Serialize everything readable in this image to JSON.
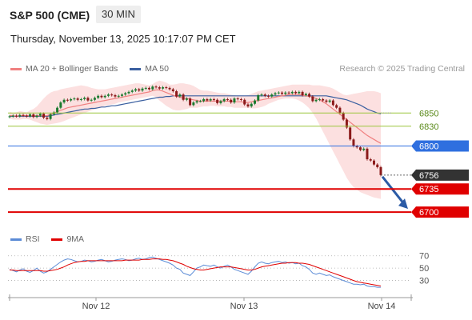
{
  "header": {
    "title": "S&P 500 (CME)",
    "timeframe": "30 MIN",
    "date": "Thursday, November 13, 2025 10:17:07 PM CET"
  },
  "legend": {
    "items": [
      {
        "label": "MA 20 + Bollinger Bands",
        "color": "#f08080"
      },
      {
        "label": "MA 50",
        "color": "#3a5fa0"
      }
    ],
    "research": "Research © 2025 Trading Central"
  },
  "rsi_legend": {
    "items": [
      {
        "label": "RSI",
        "color": "#5b8bd6"
      },
      {
        "label": "9MA",
        "color": "#e00000"
      }
    ]
  },
  "colors": {
    "up": "#1a7a2e",
    "down": "#8b1a1a",
    "bollinger": "#fbd5d5",
    "ma20": "#f08080",
    "ma50": "#3a5fa0",
    "green_level": "#9bc53d",
    "blue_level": "#2f6fdf",
    "red_level": "#e00000",
    "last_price": "#333333",
    "arrow": "#2b5ba6"
  },
  "chart_data": [
    {
      "type": "candlestick",
      "title": "S&P 500 (CME)",
      "x_ticks": [
        "Nov 12",
        "Nov 13",
        "Nov 14"
      ],
      "ylim": [
        6688,
        6900
      ],
      "levels": [
        {
          "value": 6850,
          "label": "6850",
          "style": "green-line"
        },
        {
          "value": 6830,
          "label": "6830",
          "style": "green-line"
        },
        {
          "value": 6800,
          "label": "6800",
          "style": "blue-tag"
        },
        {
          "value": 6756,
          "label": "6756",
          "style": "last-price-tag"
        },
        {
          "value": 6735,
          "label": "6735",
          "style": "red-tag"
        },
        {
          "value": 6700,
          "label": "6700",
          "style": "red-tag"
        }
      ],
      "close": [
        6845,
        6846,
        6845,
        6847,
        6846,
        6845,
        6848,
        6844,
        6846,
        6849,
        6843,
        6841,
        6848,
        6851,
        6858,
        6866,
        6870,
        6869,
        6871,
        6872,
        6870,
        6871,
        6873,
        6869,
        6870,
        6873,
        6876,
        6874,
        6876,
        6878,
        6877,
        6875,
        6876,
        6878,
        6880,
        6882,
        6884,
        6886,
        6884,
        6887,
        6888,
        6886,
        6890,
        6889,
        6887,
        6889,
        6888,
        6886,
        6883,
        6875,
        6878,
        6870,
        6872,
        6862,
        6866,
        6868,
        6868,
        6871,
        6869,
        6871,
        6870,
        6865,
        6868,
        6871,
        6870,
        6866,
        6872,
        6871,
        6870,
        6863,
        6860,
        6864,
        6869,
        6877,
        6878,
        6876,
        6875,
        6878,
        6880,
        6881,
        6879,
        6881,
        6880,
        6882,
        6880,
        6882,
        6877,
        6879,
        6875,
        6868,
        6870,
        6871,
        6869,
        6867,
        6869,
        6862,
        6858,
        6850,
        6840,
        6828,
        6810,
        6800,
        6798,
        6794,
        6796,
        6780,
        6778,
        6772,
        6768,
        6756
      ],
      "bollinger_upper": [
        6852,
        6850,
        6851,
        6853,
        6852,
        6851,
        6854,
        6856,
        6860,
        6866,
        6872,
        6877,
        6881,
        6883,
        6884,
        6886,
        6887,
        6888,
        6889,
        6890,
        6891,
        6892,
        6891,
        6890,
        6888,
        6887,
        6886,
        6886,
        6886,
        6887,
        6888,
        6889,
        6890,
        6891,
        6892,
        6893,
        6894,
        6895,
        6895,
        6894,
        6893,
        6892,
        6894,
        6897,
        6899,
        6898,
        6896,
        6893,
        6893,
        6894,
        6895,
        6895,
        6894,
        6893,
        6891,
        6888,
        6885,
        6884,
        6884,
        6883,
        6882,
        6881,
        6880,
        6880,
        6879,
        6878,
        6877,
        6876,
        6876,
        6876,
        6877,
        6879,
        6881,
        6883,
        6884,
        6885,
        6886,
        6887,
        6888,
        6889,
        6890,
        6891,
        6892,
        6893,
        6893,
        6893,
        6893,
        6893,
        6893,
        6892,
        6892,
        6892,
        6891,
        6890,
        6889,
        6887,
        6884,
        6881,
        6878,
        6877,
        6878,
        6879,
        6880,
        6881,
        6882,
        6883,
        6883,
        6883,
        6882,
        6880
      ],
      "bollinger_lower": [
        6842,
        6840,
        6840,
        6840,
        6841,
        6841,
        6840,
        6838,
        6836,
        6834,
        6833,
        6832,
        6833,
        6834,
        6835,
        6836,
        6838,
        6840,
        6842,
        6844,
        6846,
        6848,
        6850,
        6852,
        6854,
        6856,
        6857,
        6859,
        6861,
        6862,
        6863,
        6864,
        6866,
        6867,
        6868,
        6869,
        6870,
        6871,
        6872,
        6873,
        6874,
        6875,
        6876,
        6874,
        6869,
        6865,
        6861,
        6858,
        6855,
        6854,
        6854,
        6855,
        6856,
        6858,
        6858,
        6858,
        6859,
        6860,
        6860,
        6861,
        6861,
        6860,
        6860,
        6860,
        6859,
        6859,
        6858,
        6858,
        6858,
        6858,
        6858,
        6857,
        6857,
        6858,
        6859,
        6861,
        6864,
        6866,
        6868,
        6870,
        6871,
        6872,
        6872,
        6872,
        6871,
        6869,
        6866,
        6862,
        6857,
        6850,
        6842,
        6832,
        6822,
        6812,
        6802,
        6792,
        6782,
        6772,
        6762,
        6752,
        6744,
        6738,
        6734,
        6730,
        6728,
        6726,
        6724,
        6722,
        6721,
        6720
      ],
      "ma20": [
        6846,
        6846,
        6845,
        6846,
        6846,
        6846,
        6846,
        6846,
        6846,
        6846,
        6846,
        6846,
        6848,
        6850,
        6852,
        6854,
        6856,
        6858,
        6859,
        6860,
        6861,
        6862,
        6863,
        6864,
        6865,
        6866,
        6867,
        6868,
        6869,
        6870,
        6871,
        6872,
        6873,
        6874,
        6875,
        6876,
        6877,
        6878,
        6879,
        6880,
        6881,
        6882,
        6884,
        6885,
        6885,
        6883,
        6881,
        6879,
        6877,
        6875,
        6874,
        6873,
        6872,
        6871,
        6870,
        6869,
        6868,
        6868,
        6868,
        6868,
        6868,
        6868,
        6868,
        6868,
        6868,
        6868,
        6867,
        6867,
        6867,
        6866,
        6866,
        6867,
        6868,
        6869,
        6870,
        6871,
        6872,
        6873,
        6874,
        6875,
        6876,
        6877,
        6878,
        6878,
        6878,
        6878,
        6877,
        6876,
        6875,
        6874,
        6872,
        6870,
        6867,
        6864,
        6860,
        6856,
        6852,
        6848,
        6844,
        6840,
        6836,
        6832,
        6828,
        6824,
        6820,
        6816,
        6813,
        6810,
        6807,
        6804
      ],
      "ma50": [
        6845,
        6845,
        6845,
        6845,
        6845,
        6845,
        6845,
        6845,
        6845,
        6845,
        6845,
        6845,
        6846,
        6847,
        6848,
        6849,
        6850,
        6851,
        6852,
        6853,
        6854,
        6855,
        6856,
        6856,
        6857,
        6857,
        6858,
        6859,
        6859,
        6860,
        6861,
        6861,
        6862,
        6863,
        6864,
        6865,
        6866,
        6867,
        6868,
        6869,
        6870,
        6871,
        6872,
        6873,
        6874,
        6874,
        6875,
        6875,
        6876,
        6876,
        6876,
        6876,
        6876,
        6876,
        6876,
        6876,
        6876,
        6876,
        6876,
        6876,
        6876,
        6876,
        6876,
        6876,
        6876,
        6876,
        6876,
        6876,
        6876,
        6876,
        6876,
        6876,
        6876,
        6876,
        6876,
        6876,
        6876,
        6876,
        6876,
        6876,
        6876,
        6876,
        6876,
        6876,
        6876,
        6876,
        6876,
        6876,
        6876,
        6876,
        6876,
        6876,
        6876,
        6876,
        6875,
        6874,
        6873,
        6872,
        6871,
        6870,
        6868,
        6866,
        6864,
        6862,
        6859,
        6856,
        6854,
        6852,
        6850,
        6849
      ],
      "forecast": {
        "from": 6756,
        "to": 6700
      }
    },
    {
      "type": "line",
      "title": "RSI",
      "ylim": [
        10,
        80
      ],
      "y_ticks": [
        70,
        50,
        30
      ],
      "series": [
        {
          "name": "RSI",
          "values": [
            48,
            46,
            44,
            47,
            49,
            45,
            43,
            46,
            50,
            45,
            42,
            44,
            48,
            52,
            56,
            60,
            63,
            65,
            64,
            62,
            60,
            61,
            63,
            62,
            60,
            61,
            63,
            64,
            62,
            60,
            61,
            63,
            64,
            65,
            64,
            62,
            63,
            65,
            66,
            64,
            65,
            67,
            68,
            66,
            64,
            62,
            60,
            58,
            55,
            50,
            48,
            42,
            40,
            38,
            44,
            50,
            52,
            55,
            54,
            53,
            55,
            52,
            50,
            53,
            55,
            52,
            48,
            46,
            44,
            42,
            40,
            45,
            52,
            58,
            60,
            58,
            57,
            59,
            60,
            61,
            59,
            60,
            58,
            59,
            57,
            58,
            54,
            52,
            48,
            42,
            40,
            42,
            40,
            38,
            39,
            36,
            34,
            32,
            30,
            28,
            26,
            24,
            24,
            23,
            24,
            21,
            20,
            20,
            19,
            19
          ]
        },
        {
          "name": "9MA",
          "values": [
            47,
            47,
            46,
            46,
            46,
            46,
            46,
            46,
            46,
            46,
            45,
            45,
            46,
            47,
            48,
            50,
            52,
            55,
            57,
            59,
            60,
            61,
            61,
            62,
            62,
            62,
            62,
            62,
            62,
            62,
            62,
            62,
            62,
            62,
            63,
            63,
            63,
            63,
            63,
            64,
            64,
            64,
            65,
            65,
            65,
            64,
            64,
            63,
            62,
            60,
            58,
            56,
            53,
            51,
            49,
            48,
            47,
            47,
            48,
            49,
            50,
            51,
            52,
            52,
            52,
            52,
            51,
            50,
            49,
            48,
            47,
            47,
            48,
            50,
            52,
            53,
            54,
            55,
            56,
            57,
            58,
            58,
            59,
            59,
            59,
            58,
            58,
            57,
            56,
            54,
            52,
            50,
            48,
            46,
            44,
            42,
            40,
            38,
            36,
            34,
            32,
            30,
            28,
            27,
            26,
            25,
            24,
            23,
            22,
            21
          ]
        }
      ],
      "reference_lines": [
        70,
        50,
        30
      ]
    }
  ]
}
